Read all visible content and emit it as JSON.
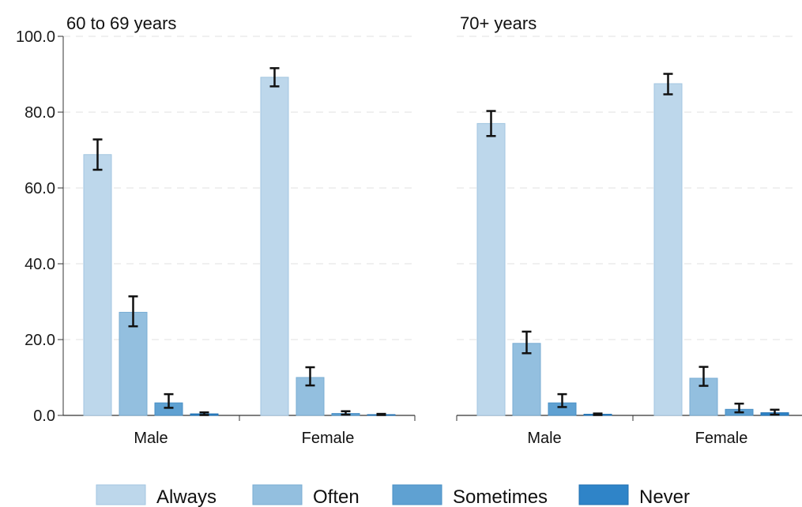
{
  "chart_data": [
    {
      "type": "bar",
      "title": "60 to 69 years",
      "categories": [
        "Male",
        "Female"
      ],
      "series": [
        {
          "name": "Always",
          "values": [
            68.8,
            89.2
          ],
          "ci_low": [
            64.8,
            86.8
          ],
          "ci_high": [
            72.8,
            91.6
          ]
        },
        {
          "name": "Often",
          "values": [
            27.2,
            10.0
          ],
          "ci_low": [
            23.5,
            7.9
          ],
          "ci_high": [
            31.4,
            12.7
          ]
        },
        {
          "name": "Sometimes",
          "values": [
            3.3,
            0.5
          ],
          "ci_low": [
            2.0,
            0.2
          ],
          "ci_high": [
            5.6,
            1.1
          ]
        },
        {
          "name": "Never",
          "values": [
            0.4,
            0.2
          ],
          "ci_low": [
            0.1,
            0.1
          ],
          "ci_high": [
            0.8,
            0.4
          ]
        }
      ],
      "ylim": [
        0,
        100
      ],
      "yticks": [
        "0.0",
        "20.0",
        "40.0",
        "60.0",
        "80.0",
        "100.0"
      ]
    },
    {
      "type": "bar",
      "title": "70+ years",
      "categories": [
        "Male",
        "Female"
      ],
      "series": [
        {
          "name": "Always",
          "values": [
            77.0,
            87.5
          ],
          "ci_low": [
            73.7,
            84.7
          ],
          "ci_high": [
            80.3,
            90.1
          ]
        },
        {
          "name": "Often",
          "values": [
            19.0,
            9.8
          ],
          "ci_low": [
            16.4,
            7.8
          ],
          "ci_high": [
            22.1,
            12.8
          ]
        },
        {
          "name": "Sometimes",
          "values": [
            3.3,
            1.6
          ],
          "ci_low": [
            2.2,
            0.8
          ],
          "ci_high": [
            5.6,
            3.1
          ]
        },
        {
          "name": "Never",
          "values": [
            0.3,
            0.7
          ],
          "ci_low": [
            0.1,
            0.2
          ],
          "ci_high": [
            0.5,
            1.5
          ]
        }
      ],
      "ylim": [
        0,
        100
      ],
      "yticks": [
        "0.0",
        "20.0",
        "40.0",
        "60.0",
        "80.0",
        "100.0"
      ]
    }
  ],
  "legend": {
    "position": "bottom",
    "items": [
      {
        "label": "Always",
        "fill": "#bdd7eb",
        "stroke": "#a2c6e0"
      },
      {
        "label": "Often",
        "fill": "#93bfdf",
        "stroke": "#78acd3"
      },
      {
        "label": "Sometimes",
        "fill": "#5fa1d2",
        "stroke": "#4a90c6"
      },
      {
        "label": "Never",
        "fill": "#2f84c8",
        "stroke": "#206fb0"
      }
    ]
  },
  "grid": true
}
